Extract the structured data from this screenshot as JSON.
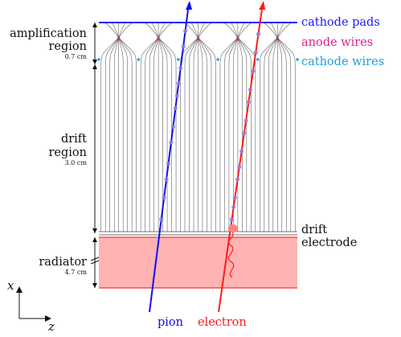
{
  "colors": {
    "cathode_pads": "#1a1aff",
    "anode_wires": "#e0208f",
    "cathode_wires": "#1ea0d8",
    "pion_track": "#1010ee",
    "electron_track": "#ff1a1a",
    "radiator_fill": "#ffb3b3",
    "field_lines": "#555555",
    "cluster": "#9b7fd6"
  },
  "labels": {
    "cathode_pads": "cathode pads",
    "anode_wires": "anode wires",
    "cathode_wires": "cathode wires",
    "drift_electrode_line1": "drift",
    "drift_electrode_line2": "electrode",
    "amplification_line1": "amplification",
    "amplification_line2": "region",
    "amplification_size": "0.7 cm",
    "drift_line1": "drift",
    "drift_line2": "region",
    "drift_size": "3.0 cm",
    "radiator": "radiator",
    "radiator_size": "4.7 cm",
    "axis_x": "x",
    "axis_z": "z",
    "pion": "pion",
    "electron": "electron"
  }
}
